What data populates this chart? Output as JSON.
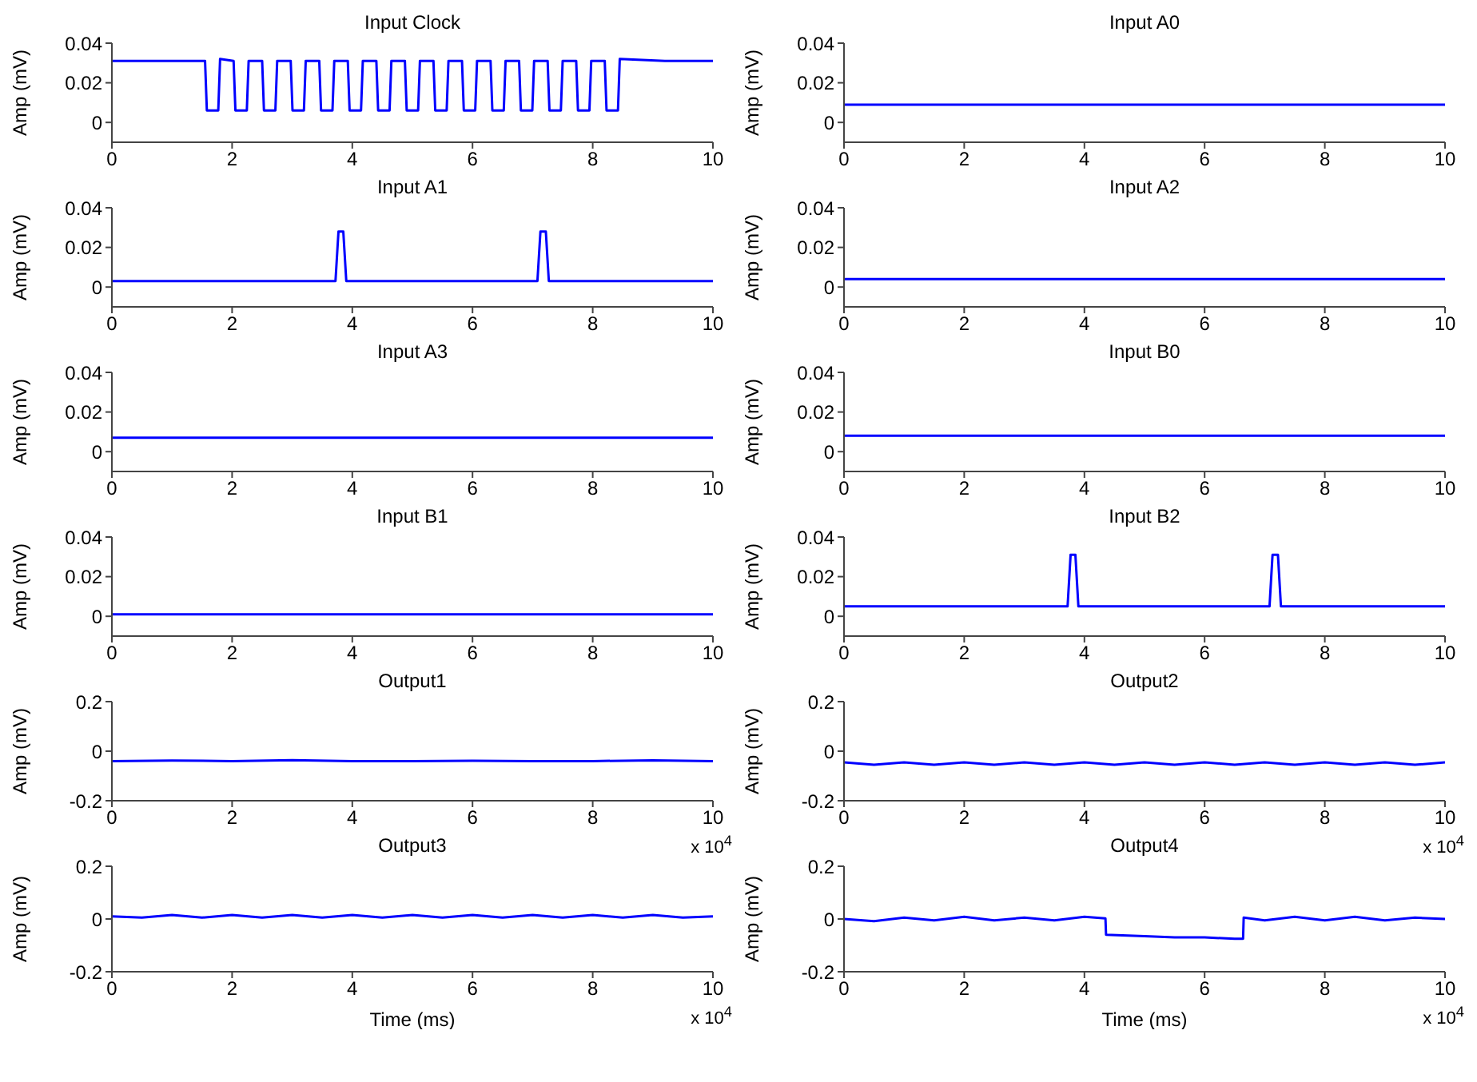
{
  "chart_data": [
    {
      "type": "line",
      "title": "Input Clock",
      "ylabel": "Amp (mV)",
      "xlim": [
        0,
        10
      ],
      "xticks": [
        0,
        2,
        4,
        6,
        8,
        10
      ],
      "ylim": [
        -0.01,
        0.04
      ],
      "yticks": [
        0,
        0.02,
        0.04
      ],
      "grid": false,
      "legend": false,
      "marker": "none",
      "x": [
        0,
        0.8,
        1.55,
        1.58,
        1.77,
        1.8,
        2.025,
        2.055,
        2.245,
        2.275,
        2.5,
        2.53,
        2.72,
        2.75,
        2.975,
        3.005,
        3.195,
        3.225,
        3.45,
        3.48,
        3.67,
        3.7,
        3.925,
        3.955,
        4.145,
        4.175,
        4.4,
        4.43,
        4.62,
        4.65,
        4.875,
        4.905,
        5.095,
        5.125,
        5.35,
        5.38,
        5.57,
        5.6,
        5.825,
        5.855,
        6.045,
        6.075,
        6.3,
        6.33,
        6.52,
        6.55,
        6.775,
        6.805,
        6.995,
        7.025,
        7.25,
        7.28,
        7.47,
        7.5,
        7.725,
        7.755,
        7.945,
        7.975,
        8.2,
        8.23,
        8.42,
        8.45,
        9.2,
        10
      ],
      "series": [
        {
          "color": "#0000ff",
          "values": [
            0.031,
            0.031,
            0.031,
            0.006,
            0.006,
            0.032,
            0.031,
            0.006,
            0.006,
            0.031,
            0.031,
            0.006,
            0.006,
            0.031,
            0.031,
            0.006,
            0.006,
            0.031,
            0.031,
            0.006,
            0.006,
            0.031,
            0.031,
            0.006,
            0.006,
            0.031,
            0.031,
            0.006,
            0.006,
            0.031,
            0.031,
            0.006,
            0.006,
            0.031,
            0.031,
            0.006,
            0.006,
            0.031,
            0.031,
            0.006,
            0.006,
            0.031,
            0.031,
            0.006,
            0.006,
            0.031,
            0.031,
            0.006,
            0.006,
            0.031,
            0.031,
            0.006,
            0.006,
            0.031,
            0.031,
            0.006,
            0.006,
            0.031,
            0.031,
            0.006,
            0.006,
            0.032,
            0.031,
            0.031
          ]
        }
      ]
    },
    {
      "type": "line",
      "title": "Input A0",
      "ylabel": "Amp (mV)",
      "xlim": [
        0,
        10
      ],
      "xticks": [
        0,
        2,
        4,
        6,
        8,
        10
      ],
      "ylim": [
        -0.01,
        0.04
      ],
      "yticks": [
        0,
        0.02,
        0.04
      ],
      "grid": false,
      "legend": false,
      "marker": "none",
      "x": [
        0,
        2,
        4,
        6,
        8,
        10
      ],
      "series": [
        {
          "color": "#0000ff",
          "values": [
            0.009,
            0.009,
            0.009,
            0.009,
            0.009,
            0.009
          ]
        }
      ]
    },
    {
      "type": "line",
      "title": "Input A1",
      "ylabel": "Amp (mV)",
      "xlim": [
        0,
        10
      ],
      "xticks": [
        0,
        2,
        4,
        6,
        8,
        10
      ],
      "ylim": [
        -0.01,
        0.04
      ],
      "yticks": [
        0,
        0.02,
        0.04
      ],
      "grid": false,
      "legend": false,
      "marker": "none",
      "x": [
        0,
        2,
        3.72,
        3.77,
        3.85,
        3.9,
        5.5,
        7.08,
        7.13,
        7.22,
        7.27,
        10
      ],
      "series": [
        {
          "color": "#0000ff",
          "values": [
            0.003,
            0.003,
            0.003,
            0.028,
            0.028,
            0.003,
            0.003,
            0.003,
            0.028,
            0.028,
            0.003,
            0.003
          ]
        }
      ]
    },
    {
      "type": "line",
      "title": "Input A2",
      "ylabel": "Amp (mV)",
      "xlim": [
        0,
        10
      ],
      "xticks": [
        0,
        2,
        4,
        6,
        8,
        10
      ],
      "ylim": [
        -0.01,
        0.04
      ],
      "yticks": [
        0,
        0.02,
        0.04
      ],
      "grid": false,
      "legend": false,
      "marker": "none",
      "x": [
        0,
        2,
        4,
        6,
        8,
        10
      ],
      "series": [
        {
          "color": "#0000ff",
          "values": [
            0.004,
            0.004,
            0.004,
            0.004,
            0.004,
            0.004
          ]
        }
      ]
    },
    {
      "type": "line",
      "title": "Input A3",
      "ylabel": "Amp (mV)",
      "xlim": [
        0,
        10
      ],
      "xticks": [
        0,
        2,
        4,
        6,
        8,
        10
      ],
      "ylim": [
        -0.01,
        0.04
      ],
      "yticks": [
        0,
        0.02,
        0.04
      ],
      "grid": false,
      "legend": false,
      "marker": "none",
      "x": [
        0,
        2,
        4,
        6,
        8,
        10
      ],
      "series": [
        {
          "color": "#0000ff",
          "values": [
            0.007,
            0.007,
            0.007,
            0.007,
            0.007,
            0.007
          ]
        }
      ]
    },
    {
      "type": "line",
      "title": "Input B0",
      "ylabel": "Amp (mV)",
      "xlim": [
        0,
        10
      ],
      "xticks": [
        0,
        2,
        4,
        6,
        8,
        10
      ],
      "ylim": [
        -0.01,
        0.04
      ],
      "yticks": [
        0,
        0.02,
        0.04
      ],
      "grid": false,
      "legend": false,
      "marker": "none",
      "x": [
        0,
        2,
        4,
        6,
        8,
        10
      ],
      "series": [
        {
          "color": "#0000ff",
          "values": [
            0.008,
            0.008,
            0.008,
            0.008,
            0.008,
            0.008
          ]
        }
      ]
    },
    {
      "type": "line",
      "title": "Input B1",
      "ylabel": "Amp (mV)",
      "xlim": [
        0,
        10
      ],
      "xticks": [
        0,
        2,
        4,
        6,
        8,
        10
      ],
      "ylim": [
        -0.01,
        0.04
      ],
      "yticks": [
        0,
        0.02,
        0.04
      ],
      "grid": false,
      "legend": false,
      "marker": "none",
      "x": [
        0,
        2,
        4,
        6,
        8,
        10
      ],
      "series": [
        {
          "color": "#0000ff",
          "values": [
            0.001,
            0.001,
            0.001,
            0.001,
            0.001,
            0.001
          ]
        }
      ]
    },
    {
      "type": "line",
      "title": "Input B2",
      "ylabel": "Amp (mV)",
      "xlim": [
        0,
        10
      ],
      "xticks": [
        0,
        2,
        4,
        6,
        8,
        10
      ],
      "ylim": [
        -0.01,
        0.04
      ],
      "yticks": [
        0,
        0.02,
        0.04
      ],
      "grid": false,
      "legend": false,
      "marker": "none",
      "x": [
        0,
        2,
        3.72,
        3.77,
        3.85,
        3.9,
        5.5,
        7.08,
        7.13,
        7.22,
        7.27,
        10
      ],
      "series": [
        {
          "color": "#0000ff",
          "values": [
            0.005,
            0.005,
            0.005,
            0.031,
            0.031,
            0.005,
            0.005,
            0.005,
            0.031,
            0.031,
            0.005,
            0.005
          ]
        }
      ]
    },
    {
      "type": "line",
      "title": "Output1",
      "ylabel": "Amp (mV)",
      "annotations": [
        "x 10$^{4}$"
      ],
      "xlim": [
        0,
        10
      ],
      "xticks": [
        0,
        2,
        4,
        6,
        8,
        10
      ],
      "ylim": [
        -0.2,
        0.2
      ],
      "yticks": [
        -0.2,
        0,
        0.2
      ],
      "grid": false,
      "legend": false,
      "marker": "none",
      "x": [
        0,
        1,
        2,
        3,
        4,
        5,
        6,
        7,
        8,
        9,
        10
      ],
      "series": [
        {
          "color": "#0000ff",
          "values": [
            -0.04,
            -0.038,
            -0.04,
            -0.036,
            -0.04,
            -0.04,
            -0.039,
            -0.04,
            -0.04,
            -0.037,
            -0.04
          ]
        }
      ]
    },
    {
      "type": "line",
      "title": "Output2",
      "ylabel": "Amp (mV)",
      "annotations": [
        "x 10$^{4}$"
      ],
      "xlim": [
        0,
        10
      ],
      "xticks": [
        0,
        2,
        4,
        6,
        8,
        10
      ],
      "ylim": [
        -0.2,
        0.2
      ],
      "yticks": [
        -0.2,
        0,
        0.2
      ],
      "grid": false,
      "legend": false,
      "marker": "none",
      "x": [
        0,
        0.5,
        1,
        1.5,
        2,
        2.5,
        3,
        3.5,
        4,
        4.5,
        5,
        5.5,
        6,
        6.5,
        7,
        7.5,
        8,
        8.5,
        9,
        9.5,
        10
      ],
      "series": [
        {
          "color": "#0000ff",
          "values": [
            -0.045,
            -0.055,
            -0.045,
            -0.055,
            -0.045,
            -0.055,
            -0.045,
            -0.055,
            -0.045,
            -0.055,
            -0.045,
            -0.055,
            -0.045,
            -0.055,
            -0.045,
            -0.055,
            -0.045,
            -0.055,
            -0.045,
            -0.055,
            -0.045
          ]
        }
      ]
    },
    {
      "type": "line",
      "title": "Output3",
      "xlabel": "Time (ms)",
      "ylabel": "Amp (mV)",
      "annotations": [
        "x 10$^{4}$"
      ],
      "xlim": [
        0,
        10
      ],
      "xticks": [
        0,
        2,
        4,
        6,
        8,
        10
      ],
      "ylim": [
        -0.2,
        0.2
      ],
      "yticks": [
        -0.2,
        0,
        0.2
      ],
      "grid": false,
      "legend": false,
      "marker": "none",
      "x": [
        0,
        0.5,
        1,
        1.5,
        2,
        2.5,
        3,
        3.5,
        4,
        4.5,
        5,
        5.5,
        6,
        6.5,
        7,
        7.5,
        8,
        8.5,
        9,
        9.5,
        10
      ],
      "series": [
        {
          "color": "#0000ff",
          "values": [
            0.01,
            0.005,
            0.015,
            0.005,
            0.015,
            0.005,
            0.015,
            0.005,
            0.015,
            0.005,
            0.015,
            0.005,
            0.015,
            0.005,
            0.015,
            0.005,
            0.015,
            0.005,
            0.015,
            0.005,
            0.01
          ]
        }
      ]
    },
    {
      "type": "line",
      "title": "Output4",
      "xlabel": "Time (ms)",
      "ylabel": "Amp (mV)",
      "annotations": [
        "x 10$^{4}$"
      ],
      "xlim": [
        0,
        10
      ],
      "xticks": [
        0,
        2,
        4,
        6,
        8,
        10
      ],
      "ylim": [
        -0.2,
        0.2
      ],
      "yticks": [
        -0.2,
        0,
        0.2
      ],
      "grid": false,
      "legend": false,
      "marker": "none",
      "x": [
        0,
        0.5,
        1,
        1.5,
        2,
        2.5,
        3,
        3.5,
        4,
        4.35,
        4.36,
        5,
        5.5,
        6,
        6.5,
        6.64,
        6.65,
        7,
        7.5,
        8,
        8.5,
        9,
        9.5,
        10
      ],
      "series": [
        {
          "color": "#0000ff",
          "values": [
            0,
            -0.008,
            0.005,
            -0.005,
            0.008,
            -0.005,
            0.005,
            -0.005,
            0.008,
            0.002,
            -0.06,
            -0.065,
            -0.07,
            -0.07,
            -0.075,
            -0.075,
            0.005,
            -0.005,
            0.008,
            -0.005,
            0.008,
            -0.005,
            0.005,
            0
          ]
        }
      ]
    }
  ]
}
